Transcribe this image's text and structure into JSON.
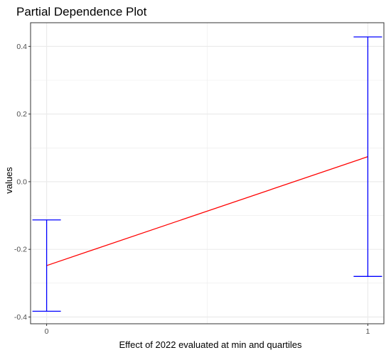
{
  "chart_data": {
    "type": "line",
    "title": "Partial Dependence Plot",
    "xlabel": "Effect of 2022 evaluated at min and quartiles",
    "ylabel": "values",
    "x": [
      0,
      1
    ],
    "series": [
      {
        "values": [
          -0.248,
          0.074
        ],
        "lower": [
          -0.383,
          -0.28
        ],
        "upper": [
          -0.113,
          0.428
        ],
        "line_color": "#ff0000",
        "error_bar_color": "#0000ff"
      }
    ],
    "xlim": [
      -0.05,
      1.05
    ],
    "ylim": [
      -0.42,
      0.47
    ],
    "x_ticks": [
      0,
      1
    ],
    "x_tick_labels": [
      "0",
      "1"
    ],
    "y_ticks": [
      -0.4,
      -0.2,
      0.0,
      0.2,
      0.4
    ],
    "y_tick_labels": [
      "-0.4",
      "-0.2",
      "0.0",
      "0.2",
      "0.4"
    ],
    "grid": true,
    "legend": "none",
    "panel_border_color": "#333333",
    "grid_color": "#ebebeb"
  }
}
